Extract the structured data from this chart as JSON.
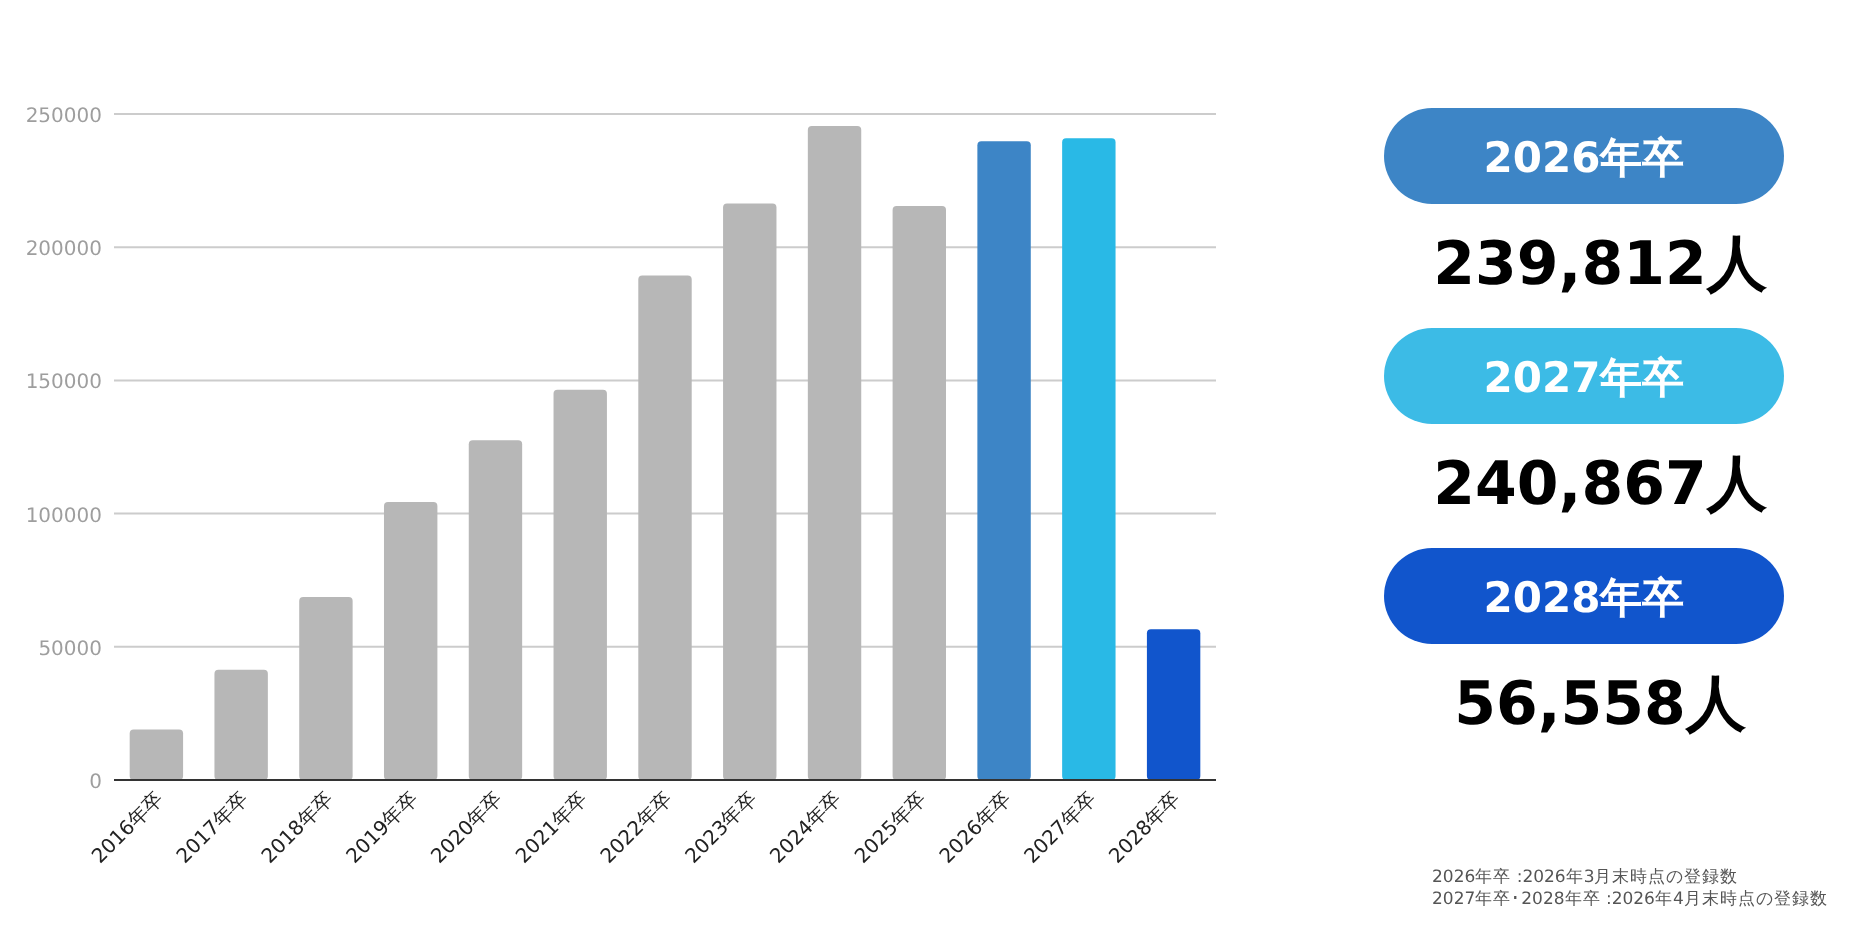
{
  "chart_data": [
    {
      "type": "bar",
      "categories": [
        "2016年卒",
        "2017年卒",
        "2018年卒",
        "2019年卒",
        "2020年卒",
        "2021年卒",
        "2022年卒",
        "2023年卒",
        "2024年卒",
        "2025年卒",
        "2026年卒",
        "2027年卒",
        "2028年卒"
      ],
      "values": [
        19000,
        41400,
        68700,
        104400,
        127500,
        146500,
        189400,
        216400,
        245500,
        215500,
        239800,
        240900,
        56600
      ],
      "colors": [
        "#b7b7b7",
        "#b7b7b7",
        "#b7b7b7",
        "#b7b7b7",
        "#b7b7b7",
        "#b7b7b7",
        "#b7b7b7",
        "#b7b7b7",
        "#b7b7b7",
        "#b7b7b7",
        "#3d85c6",
        "#29b9e6",
        "#1155cc"
      ],
      "ylim": [
        0,
        250000
      ],
      "yticks": [
        0,
        50000,
        100000,
        150000,
        200000,
        250000
      ],
      "grid": "y",
      "annotations": [
        "2026年卒 :2026年3月末時点の登録数",
        "2027年卒･2028年卒 :2026年4月末時点の登録数"
      ]
    },
    {
      "type": "other",
      "categories": [
        "2026年卒",
        "2027年卒",
        "2028年卒"
      ],
      "values": [
        239812,
        240867,
        56558
      ],
      "value_labels": [
        "239,812人",
        "240,867人",
        "56,558人"
      ],
      "colors": [
        "#3d85c6",
        "#3cbbe6",
        "#1155cc"
      ]
    }
  ]
}
